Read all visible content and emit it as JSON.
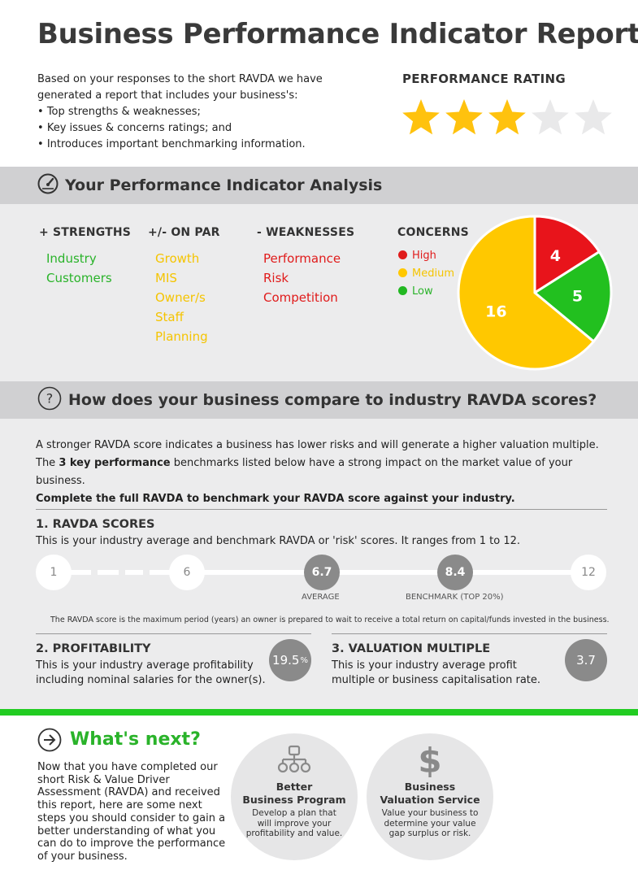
{
  "header": {
    "title": "Business Performance Indicator Report",
    "intro": "Based on your responses to the short RAVDA we have generated a report that includes your business's:",
    "bullets": [
      "Top strengths & weaknesses;",
      "Key issues & concerns ratings; and",
      "Introduces important benchmarking information."
    ],
    "rating_label": "PERFORMANCE RATING",
    "rating": {
      "value": 3,
      "max": 5,
      "filled_color": "#ffc20e",
      "empty_color": "#e9e9ea"
    }
  },
  "analysis": {
    "heading": "Your Performance Indicator Analysis",
    "icon": "gauge-icon",
    "strengths": {
      "label": "+ STRENGTHS",
      "items": [
        "Industry",
        "Customers"
      ]
    },
    "on_par": {
      "label": "+/- ON PAR",
      "items": [
        "Growth",
        "MIS",
        "Owner/s",
        "Staff",
        "Planning"
      ]
    },
    "weaknesses": {
      "label": "- WEAKNESSES",
      "items": [
        "Performance",
        "Risk",
        "Competition"
      ]
    },
    "concerns": {
      "label": "CONCERNS",
      "legend": [
        {
          "label": "High",
          "color": "#e01b1b"
        },
        {
          "label": "Medium",
          "color": "#ffc800"
        },
        {
          "label": "Low",
          "color": "#22b822"
        }
      ]
    }
  },
  "chart_data": {
    "type": "pie",
    "categories": [
      "High",
      "Low",
      "Medium"
    ],
    "values": [
      4,
      5,
      16
    ],
    "colors": [
      "#e8141b",
      "#22c01f",
      "#ffc800"
    ]
  },
  "compare": {
    "heading": "How does your business compare to industry RAVDA scores?",
    "icon": "question-icon",
    "para1": "A stronger RAVDA score indicates a business has lower risks and will generate a higher valuation multiple.",
    "para2_pre": "The ",
    "para2_bold": "3 key performance",
    "para2_post": " benchmarks listed below have a strong impact on the market value of your business.",
    "para3": "Complete the full RAVDA to benchmark your RAVDA score against your industry.",
    "ravda": {
      "heading": "1. RAVDA SCORES",
      "text": "This is your industry average and benchmark RAVDA or 'risk' scores. It ranges from 1 to 12.",
      "scale_min": "1",
      "scale_mid": "6",
      "scale_max": "12",
      "average_value": "6.7",
      "average_label": "AVERAGE",
      "benchmark_value": "8.4",
      "benchmark_label": "BENCHMARK (TOP 20%)",
      "footnote": "The RAVDA score is the maximum period (years) an owner is prepared to wait to receive a total return on capital/funds invested in the business."
    },
    "profitability": {
      "heading": "2. PROFITABILITY",
      "text": "This is your industry average profitability including nominal salaries for the owner(s).",
      "value": "19.5",
      "unit": "%"
    },
    "valuation": {
      "heading": "3. VALUATION MULTIPLE",
      "text": "This is your industry average profit multiple or business capitalisation rate.",
      "value": "3.7"
    }
  },
  "next": {
    "heading": "What's next?",
    "icon": "arrow-right-circle-icon",
    "text": "Now that you have completed our short Risk & Value Driver Assessment (RAVDA) and received this report, here are some next steps you should consider to gain a better understanding of what you can do to improve the performance of your business.",
    "cards": [
      {
        "icon": "org-chart-icon",
        "title_line1": "Better",
        "title_line2": "Business Program",
        "text": "Develop a plan that will improve your profitability and value."
      },
      {
        "icon": "dollar-icon",
        "title_line1": "Business",
        "title_line2": "Valuation Service",
        "text": "Value your business to determine your value gap surplus or risk."
      }
    ]
  }
}
